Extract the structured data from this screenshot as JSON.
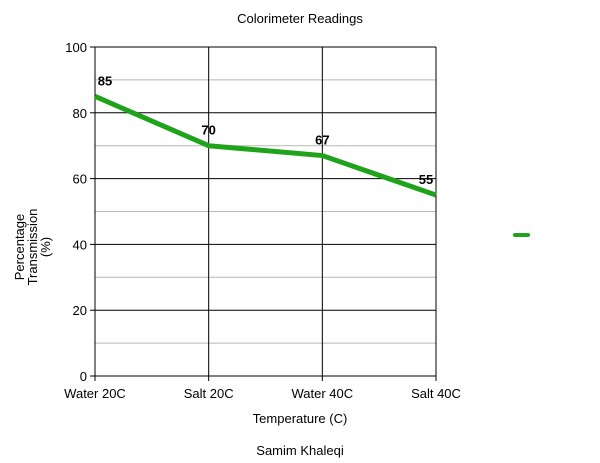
{
  "chart_data": {
    "type": "line",
    "title": "Colorimeter Readings",
    "xlabel": "Temperature (C)",
    "ylabel_lines": [
      "Percentage",
      "Transmission",
      "(%)"
    ],
    "footer": "Samim Khaleqi",
    "categories": [
      "Water 20C",
      "Salt 20C",
      "Water 40C",
      "Salt 40C"
    ],
    "series": [
      {
        "values": [
          85,
          70,
          67,
          55
        ],
        "color": "#1fa31a"
      }
    ],
    "ylim": [
      0,
      100
    ],
    "yticks": [
      0,
      20,
      40,
      60,
      80,
      100
    ],
    "ytick_labels": [
      "0",
      "20",
      "40",
      "60",
      "80",
      "100"
    ],
    "minor_gridlines": true,
    "data_labels": [
      "85",
      "70",
      "67",
      "55"
    ],
    "legend": {
      "placement": "right"
    }
  }
}
